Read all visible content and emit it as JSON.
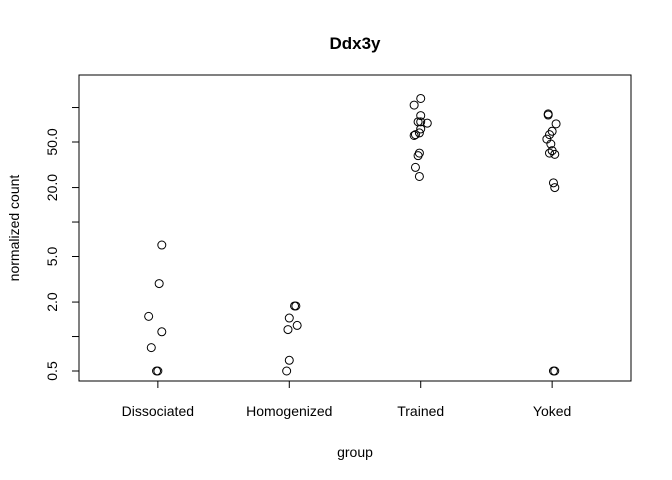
{
  "chart_data": {
    "type": "scatter",
    "title": "Ddx3y",
    "xlabel": "group",
    "ylabel": "normalized count",
    "y_scale": "log",
    "ylim": [
      0.42,
      148
    ],
    "yticks": [
      0.5,
      2.0,
      5.0,
      20.0,
      50.0
    ],
    "yticks_labeled": [
      "0.5",
      "2.0",
      "5.0",
      "20.0",
      "50.0"
    ],
    "yticks_minor": [
      1.0,
      10.0,
      100.0
    ],
    "categories": [
      "Dissociated",
      "Homogenized",
      "Trained",
      "Yoked"
    ],
    "grid": false,
    "legend": "none",
    "points": [
      {
        "group": "Dissociated",
        "x": 1.03,
        "y": 6.3
      },
      {
        "group": "Dissociated",
        "x": 1.01,
        "y": 2.9
      },
      {
        "group": "Dissociated",
        "x": 0.93,
        "y": 1.5
      },
      {
        "group": "Dissociated",
        "x": 1.03,
        "y": 1.1
      },
      {
        "group": "Dissociated",
        "x": 0.95,
        "y": 0.8
      },
      {
        "group": "Dissociated",
        "x": 0.99,
        "y": 0.5
      },
      {
        "group": "Dissociated",
        "x": 1.0,
        "y": 0.5
      },
      {
        "group": "Homogenized",
        "x": 2.04,
        "y": 1.85
      },
      {
        "group": "Homogenized",
        "x": 2.05,
        "y": 1.85
      },
      {
        "group": "Homogenized",
        "x": 2.0,
        "y": 1.45
      },
      {
        "group": "Homogenized",
        "x": 2.06,
        "y": 1.25
      },
      {
        "group": "Homogenized",
        "x": 1.99,
        "y": 1.15
      },
      {
        "group": "Homogenized",
        "x": 2.0,
        "y": 0.62
      },
      {
        "group": "Homogenized",
        "x": 1.98,
        "y": 0.5
      },
      {
        "group": "Trained",
        "x": 3.0,
        "y": 120
      },
      {
        "group": "Trained",
        "x": 2.95,
        "y": 105
      },
      {
        "group": "Trained",
        "x": 3.0,
        "y": 85
      },
      {
        "group": "Trained",
        "x": 2.98,
        "y": 75
      },
      {
        "group": "Trained",
        "x": 3.0,
        "y": 75
      },
      {
        "group": "Trained",
        "x": 3.05,
        "y": 73
      },
      {
        "group": "Trained",
        "x": 3.0,
        "y": 65
      },
      {
        "group": "Trained",
        "x": 2.99,
        "y": 60
      },
      {
        "group": "Trained",
        "x": 2.96,
        "y": 58
      },
      {
        "group": "Trained",
        "x": 2.95,
        "y": 57
      },
      {
        "group": "Trained",
        "x": 2.99,
        "y": 40
      },
      {
        "group": "Trained",
        "x": 2.98,
        "y": 38
      },
      {
        "group": "Trained",
        "x": 2.96,
        "y": 30
      },
      {
        "group": "Trained",
        "x": 2.99,
        "y": 25
      },
      {
        "group": "Yoked",
        "x": 3.97,
        "y": 88
      },
      {
        "group": "Yoked",
        "x": 3.97,
        "y": 86
      },
      {
        "group": "Yoked",
        "x": 4.03,
        "y": 72
      },
      {
        "group": "Yoked",
        "x": 4.0,
        "y": 62
      },
      {
        "group": "Yoked",
        "x": 3.98,
        "y": 58
      },
      {
        "group": "Yoked",
        "x": 3.96,
        "y": 53
      },
      {
        "group": "Yoked",
        "x": 3.99,
        "y": 48
      },
      {
        "group": "Yoked",
        "x": 4.0,
        "y": 42
      },
      {
        "group": "Yoked",
        "x": 3.98,
        "y": 40
      },
      {
        "group": "Yoked",
        "x": 4.02,
        "y": 39
      },
      {
        "group": "Yoked",
        "x": 4.01,
        "y": 22
      },
      {
        "group": "Yoked",
        "x": 4.02,
        "y": 20
      },
      {
        "group": "Yoked",
        "x": 4.01,
        "y": 0.5
      },
      {
        "group": "Yoked",
        "x": 4.02,
        "y": 0.5
      }
    ]
  }
}
